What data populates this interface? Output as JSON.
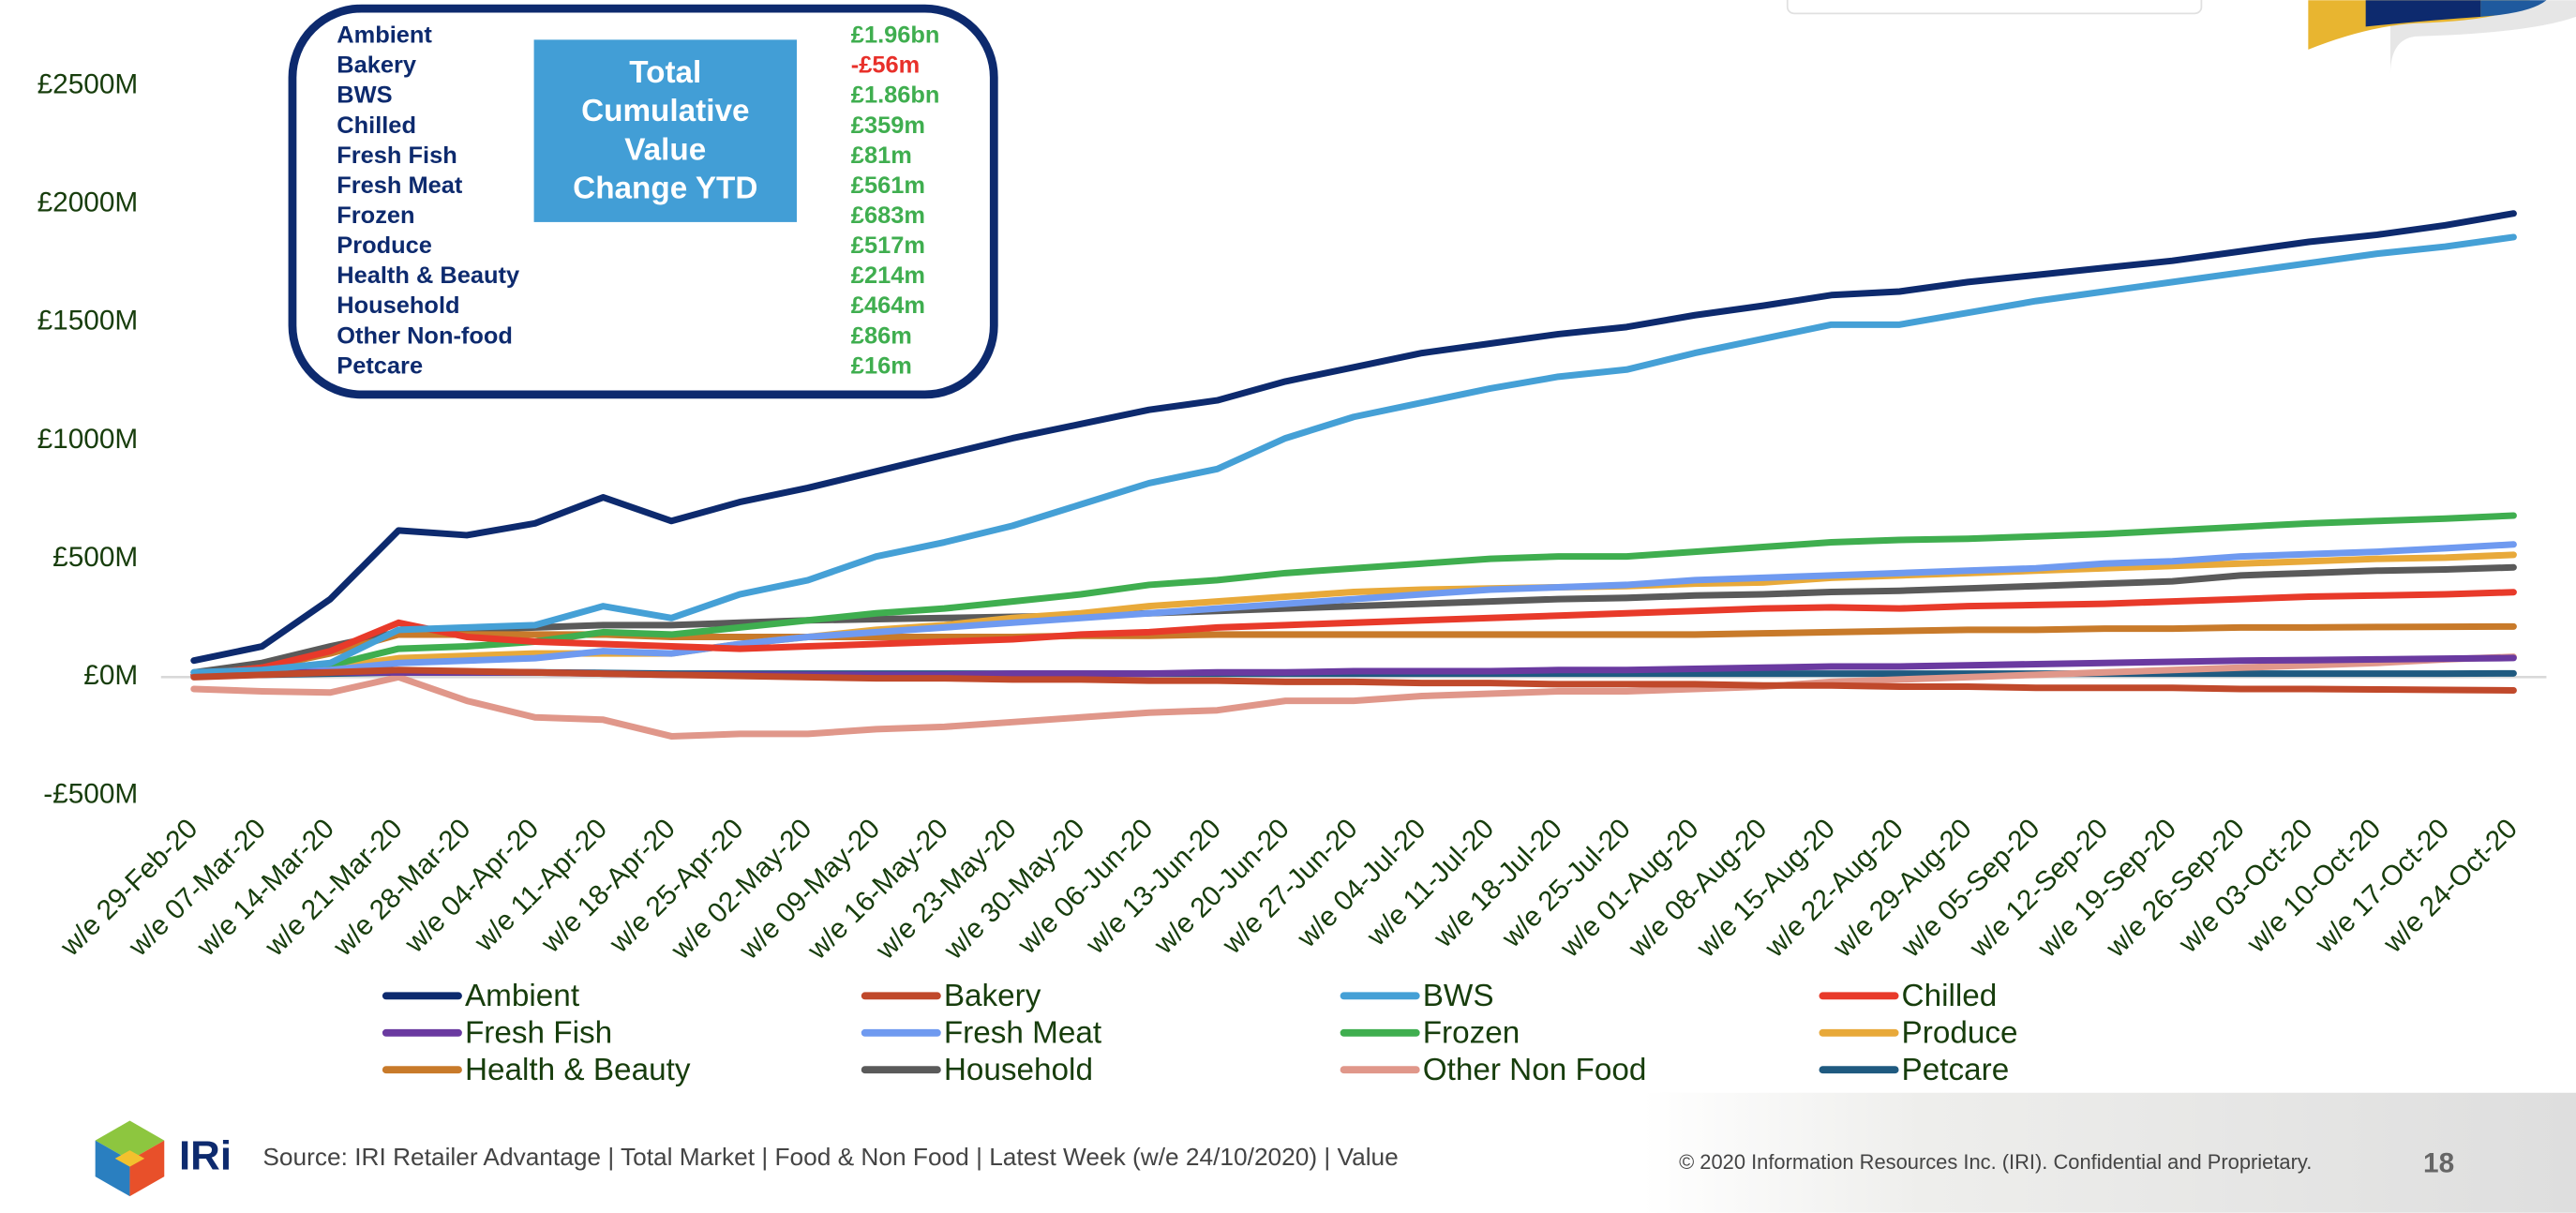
{
  "chart_data": {
    "type": "line",
    "categories": [
      "w/e 29-Feb-20",
      "w/e 07-Mar-20",
      "w/e 14-Mar-20",
      "w/e 21-Mar-20",
      "w/e 28-Mar-20",
      "w/e 04-Apr-20",
      "w/e 11-Apr-20",
      "w/e 18-Apr-20",
      "w/e 25-Apr-20",
      "w/e 02-May-20",
      "w/e 09-May-20",
      "w/e 16-May-20",
      "w/e 23-May-20",
      "w/e 30-May-20",
      "w/e 06-Jun-20",
      "w/e 13-Jun-20",
      "w/e 20-Jun-20",
      "w/e 27-Jun-20",
      "w/e 04-Jul-20",
      "w/e 11-Jul-20",
      "w/e 18-Jul-20",
      "w/e 25-Jul-20",
      "w/e 01-Aug-20",
      "w/e 08-Aug-20",
      "w/e 15-Aug-20",
      "w/e 22-Aug-20",
      "w/e 29-Aug-20",
      "w/e 05-Sep-20",
      "w/e 12-Sep-20",
      "w/e 19-Sep-20",
      "w/e 26-Sep-20",
      "w/e 03-Oct-20",
      "w/e 10-Oct-20",
      "w/e 17-Oct-20",
      "w/e 24-Oct-20"
    ],
    "ylim": [
      -500,
      2500
    ],
    "yticks": [
      {
        "value": -500,
        "label": "-£500M"
      },
      {
        "value": 0,
        "label": "£0M"
      },
      {
        "value": 500,
        "label": "£500M"
      },
      {
        "value": 1000,
        "label": "£1000M"
      },
      {
        "value": 1500,
        "label": "£1500M"
      },
      {
        "value": 2000,
        "label": "£2000M"
      },
      {
        "value": 2500,
        "label": "£2500M"
      }
    ],
    "grid": false,
    "series": [
      {
        "name": "Ambient",
        "color": "#0d2a6e",
        "values": [
          70,
          130,
          330,
          620,
          600,
          650,
          760,
          660,
          740,
          800,
          870,
          940,
          1010,
          1070,
          1130,
          1170,
          1250,
          1310,
          1370,
          1410,
          1450,
          1480,
          1530,
          1570,
          1615,
          1630,
          1670,
          1700,
          1730,
          1760,
          1800,
          1840,
          1870,
          1910,
          1960
        ]
      },
      {
        "name": "Bakery",
        "color": "#c0492b",
        "values": [
          0,
          10,
          20,
          30,
          25,
          20,
          15,
          10,
          5,
          0,
          -5,
          -5,
          -10,
          -10,
          -15,
          -15,
          -20,
          -20,
          -25,
          -25,
          -30,
          -30,
          -30,
          -35,
          -35,
          -40,
          -40,
          -45,
          -45,
          -45,
          -50,
          -50,
          -52,
          -54,
          -56
        ]
      },
      {
        "name": "BWS",
        "color": "#45a0d6",
        "values": [
          20,
          30,
          60,
          200,
          210,
          220,
          300,
          250,
          350,
          410,
          510,
          570,
          640,
          730,
          820,
          880,
          1010,
          1100,
          1160,
          1220,
          1270,
          1300,
          1370,
          1430,
          1490,
          1490,
          1540,
          1590,
          1630,
          1670,
          1710,
          1750,
          1790,
          1820,
          1860
        ]
      },
      {
        "name": "Chilled",
        "color": "#e83a2a",
        "values": [
          10,
          40,
          110,
          230,
          170,
          150,
          140,
          130,
          120,
          130,
          140,
          150,
          160,
          180,
          190,
          210,
          220,
          230,
          240,
          250,
          260,
          270,
          280,
          290,
          295,
          290,
          300,
          305,
          310,
          320,
          330,
          340,
          345,
          350,
          359
        ]
      },
      {
        "name": "Fresh Fish",
        "color": "#6a3aa0",
        "values": [
          10,
          20,
          20,
          20,
          20,
          20,
          15,
          10,
          10,
          10,
          10,
          10,
          15,
          15,
          15,
          20,
          20,
          25,
          25,
          25,
          30,
          30,
          35,
          40,
          45,
          45,
          50,
          55,
          60,
          65,
          70,
          72,
          75,
          78,
          81
        ]
      },
      {
        "name": "Fresh Meat",
        "color": "#6f9af0",
        "values": [
          5,
          15,
          30,
          60,
          70,
          80,
          110,
          100,
          140,
          170,
          190,
          210,
          230,
          250,
          270,
          290,
          310,
          330,
          350,
          370,
          380,
          390,
          410,
          420,
          430,
          440,
          450,
          460,
          480,
          490,
          510,
          520,
          530,
          545,
          561
        ]
      },
      {
        "name": "Frozen",
        "color": "#3fae4f",
        "values": [
          10,
          20,
          50,
          120,
          130,
          150,
          190,
          180,
          210,
          240,
          270,
          290,
          320,
          350,
          390,
          410,
          440,
          460,
          480,
          500,
          510,
          510,
          530,
          550,
          570,
          580,
          585,
          595,
          605,
          620,
          635,
          650,
          660,
          670,
          683
        ]
      },
      {
        "name": "Produce",
        "color": "#e8a93a",
        "values": [
          5,
          20,
          40,
          80,
          90,
          100,
          100,
          100,
          140,
          170,
          200,
          220,
          250,
          270,
          300,
          320,
          340,
          360,
          370,
          375,
          380,
          385,
          395,
          400,
          420,
          430,
          440,
          450,
          460,
          470,
          480,
          490,
          500,
          505,
          517
        ]
      },
      {
        "name": "Health & Beauty",
        "color": "#c87a2a",
        "values": [
          10,
          40,
          100,
          180,
          180,
          180,
          180,
          170,
          170,
          170,
          170,
          170,
          170,
          175,
          175,
          180,
          180,
          180,
          180,
          180,
          180,
          180,
          180,
          185,
          190,
          195,
          200,
          200,
          205,
          205,
          210,
          210,
          212,
          213,
          214
        ]
      },
      {
        "name": "Household",
        "color": "#5a5a5a",
        "values": [
          20,
          60,
          130,
          190,
          200,
          210,
          220,
          220,
          230,
          240,
          245,
          250,
          255,
          260,
          270,
          280,
          290,
          300,
          310,
          320,
          330,
          335,
          345,
          350,
          360,
          365,
          375,
          385,
          395,
          405,
          430,
          440,
          450,
          455,
          464
        ]
      },
      {
        "name": "Other Non Food",
        "color": "#e0978a",
        "values": [
          -50,
          -60,
          -65,
          0,
          -100,
          -170,
          -180,
          -250,
          -240,
          -240,
          -220,
          -210,
          -190,
          -170,
          -150,
          -140,
          -100,
          -100,
          -80,
          -70,
          -60,
          -60,
          -50,
          -40,
          -20,
          -10,
          0,
          10,
          20,
          30,
          40,
          50,
          60,
          75,
          86
        ]
      },
      {
        "name": "Petcare",
        "color": "#1f5a80",
        "values": [
          5,
          10,
          15,
          20,
          20,
          20,
          18,
          15,
          15,
          15,
          15,
          15,
          15,
          15,
          15,
          15,
          15,
          15,
          15,
          15,
          15,
          15,
          15,
          15,
          15,
          15,
          15,
          15,
          15,
          15,
          15,
          15,
          15,
          15,
          16
        ]
      }
    ]
  },
  "summary": {
    "title_lines": [
      "Total",
      "Cumulative",
      "Value",
      "Change YTD"
    ],
    "rows": [
      {
        "label": "Ambient",
        "value": "£1.96bn",
        "color": "#3fae4f"
      },
      {
        "label": "Bakery",
        "value": "-£56m",
        "color": "#e8302a"
      },
      {
        "label": "BWS",
        "value": "£1.86bn",
        "color": "#3fae4f"
      },
      {
        "label": "Chilled",
        "value": "£359m",
        "color": "#3fae4f"
      },
      {
        "label": "Fresh Fish",
        "value": "£81m",
        "color": "#3fae4f"
      },
      {
        "label": "Fresh Meat",
        "value": "£561m",
        "color": "#3fae4f"
      },
      {
        "label": "Frozen",
        "value": "£683m",
        "color": "#3fae4f"
      },
      {
        "label": "Produce",
        "value": "£517m",
        "color": "#3fae4f"
      },
      {
        "label": "Health & Beauty",
        "value": "£214m",
        "color": "#3fae4f"
      },
      {
        "label": "Household",
        "value": "£464m",
        "color": "#3fae4f"
      },
      {
        "label": "Other Non-food",
        "value": "£86m",
        "color": "#3fae4f"
      },
      {
        "label": "Petcare",
        "value": "£16m",
        "color": "#3fae4f"
      }
    ]
  },
  "footer": {
    "logo_text": "IRi",
    "source": "Source: IRI Retailer Advantage | Total Market | Food & Non Food | Latest Week (w/e 24/10/2020) | Value",
    "copyright": "© 2020 Information Resources Inc. (IRI). Confidential and Proprietary.",
    "page": "18"
  }
}
